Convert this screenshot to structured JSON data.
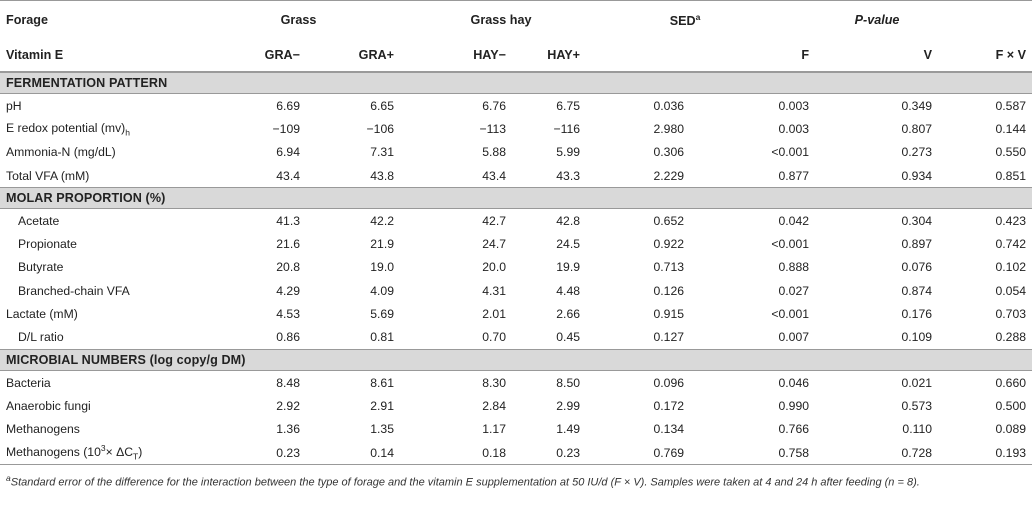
{
  "header": {
    "forage_label": "Forage",
    "grass": "Grass",
    "grass_hay": "Grass hay",
    "sed": "SED",
    "sed_sup": "a",
    "p_value": "P-value",
    "vitamin_label": "Vitamin E",
    "cols": [
      "GRA−",
      "GRA+",
      "HAY−",
      "HAY+",
      "F",
      "V",
      "F × V"
    ]
  },
  "sections": [
    {
      "title": "FERMENTATION PATTERN",
      "rows": [
        {
          "label": "pH",
          "values": [
            "6.69",
            "6.65",
            "6.76",
            "6.75",
            "0.036",
            "0.003",
            "0.349",
            "0.587"
          ]
        },
        {
          "label_pre": "E",
          "label_sub": "h",
          "label_post": " redox potential (mv)",
          "values": [
            "−109",
            "−106",
            "−113",
            "−116",
            "2.980",
            "0.003",
            "0.807",
            "0.144"
          ]
        },
        {
          "label": "Ammonia-N (mg/dL)",
          "values": [
            "6.94",
            "7.31",
            "5.88",
            "5.99",
            "0.306",
            "<0.001",
            "0.273",
            "0.550"
          ]
        },
        {
          "label": "Total VFA (mM)",
          "values": [
            "43.4",
            "43.8",
            "43.4",
            "43.3",
            "2.229",
            "0.877",
            "0.934",
            "0.851"
          ]
        }
      ]
    },
    {
      "title": "MOLAR PROPORTION (%)",
      "rows": [
        {
          "label": "Acetate",
          "indent": true,
          "values": [
            "41.3",
            "42.2",
            "42.7",
            "42.8",
            "0.652",
            "0.042",
            "0.304",
            "0.423"
          ]
        },
        {
          "label": "Propionate",
          "indent": true,
          "values": [
            "21.6",
            "21.9",
            "24.7",
            "24.5",
            "0.922",
            "<0.001",
            "0.897",
            "0.742"
          ]
        },
        {
          "label": "Butyrate",
          "indent": true,
          "values": [
            "20.8",
            "19.0",
            "20.0",
            "19.9",
            "0.713",
            "0.888",
            "0.076",
            "0.102"
          ]
        },
        {
          "label": "Branched-chain VFA",
          "indent": true,
          "values": [
            "4.29",
            "4.09",
            "4.31",
            "4.48",
            "0.126",
            "0.027",
            "0.874",
            "0.054"
          ]
        },
        {
          "label": "Lactate (mM)",
          "values": [
            "4.53",
            "5.69",
            "2.01",
            "2.66",
            "0.915",
            "<0.001",
            "0.176",
            "0.703"
          ]
        },
        {
          "label": "D/L ratio",
          "indent": true,
          "values": [
            "0.86",
            "0.81",
            "0.70",
            "0.45",
            "0.127",
            "0.007",
            "0.109",
            "0.288"
          ]
        }
      ]
    },
    {
      "title": "MICROBIAL NUMBERS (log copy/g DM)",
      "rows": [
        {
          "label": "Bacteria",
          "values": [
            "8.48",
            "8.61",
            "8.30",
            "8.50",
            "0.096",
            "0.046",
            "0.021",
            "0.660"
          ]
        },
        {
          "label": "Anaerobic fungi",
          "values": [
            "2.92",
            "2.91",
            "2.84",
            "2.99",
            "0.172",
            "0.990",
            "0.573",
            "0.500"
          ]
        },
        {
          "label": "Methanogens",
          "values": [
            "1.36",
            "1.35",
            "1.17",
            "1.49",
            "0.134",
            "0.766",
            "0.110",
            "0.089"
          ]
        },
        {
          "label_pre": "Methanogens (10",
          "label_sup": "3",
          "label_post": "× ΔC",
          "label_sub": "T",
          "label_end": ")",
          "values": [
            "0.23",
            "0.14",
            "0.18",
            "0.23",
            "0.769",
            "0.758",
            "0.728",
            "0.193"
          ]
        }
      ]
    }
  ],
  "footnote": {
    "sup": "a",
    "text": "Standard error of the difference for the interaction between the type of forage and the vitamin E supplementation at 50 IU/d (F × V). Samples were taken at 4 and 24 h after feeding (n = 8)."
  }
}
